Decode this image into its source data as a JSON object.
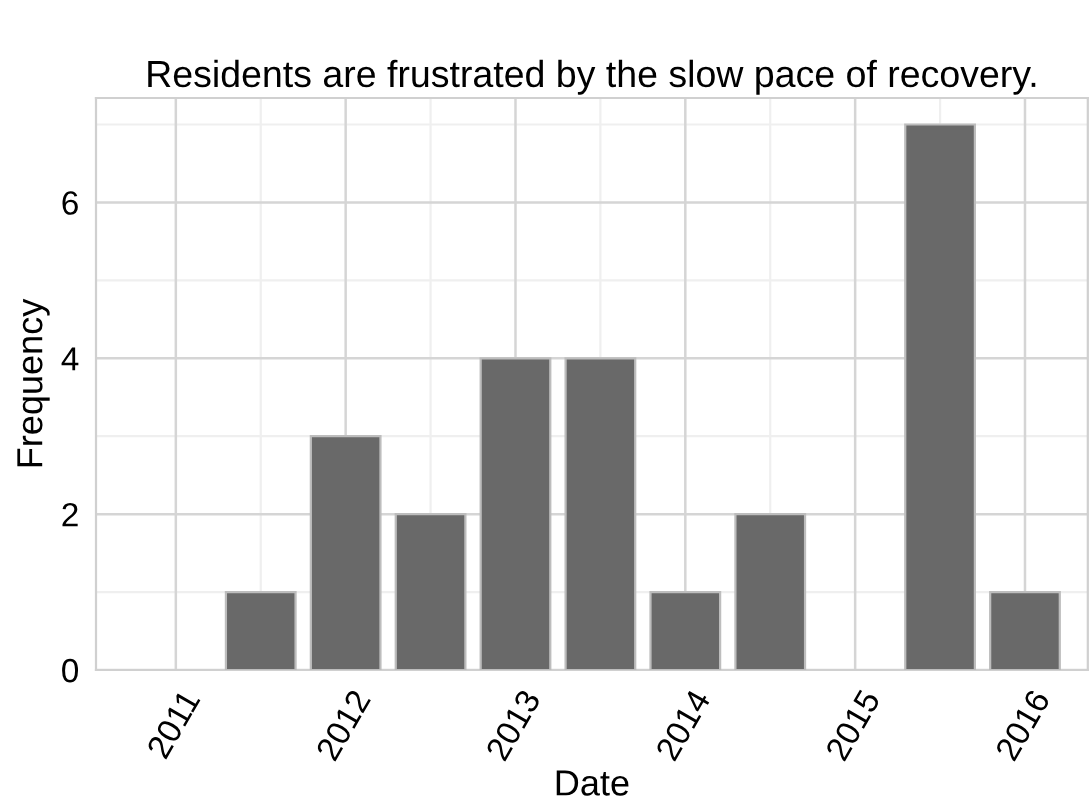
{
  "chart_data": {
    "type": "histogram",
    "title": "Residents are frustrated by the slow pace of recovery.",
    "xlabel": "Date",
    "ylabel": "Frequency",
    "bins": [
      2011.25,
      2011.75,
      2012.25,
      2012.75,
      2013.25,
      2013.75,
      2014.25,
      2014.75,
      2015.25,
      2015.75,
      2016.25
    ],
    "values": [
      1,
      3,
      2,
      4,
      4,
      1,
      2,
      0,
      7,
      1
    ],
    "color": "#696969",
    "xlim": [
      2010.53,
      2016.37
    ],
    "xticks": [
      2011,
      2012,
      2013,
      2014,
      2015,
      2016
    ],
    "ylim": [
      0,
      7.34
    ],
    "yticks": [
      0,
      2,
      4,
      6
    ],
    "grid": true,
    "legend": false
  }
}
